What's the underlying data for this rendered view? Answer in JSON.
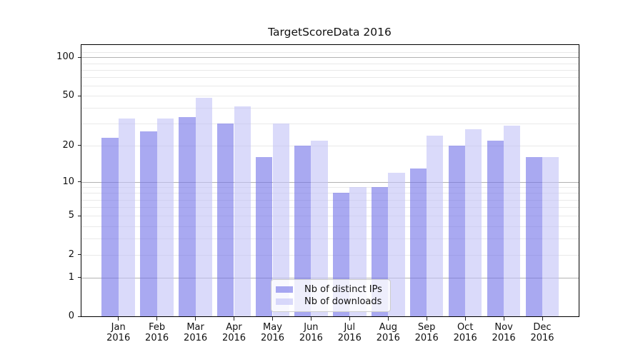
{
  "title": "TargetScoreData 2016",
  "chart_data": {
    "type": "bar",
    "title": "TargetScoreData 2016",
    "categories": [
      "Jan 2016",
      "Feb 2016",
      "Mar 2016",
      "Apr 2016",
      "May 2016",
      "Jun 2016",
      "Jul 2016",
      "Aug 2016",
      "Sep 2016",
      "Oct 2016",
      "Nov 2016",
      "Dec 2016"
    ],
    "months": [
      "Jan",
      "Feb",
      "Mar",
      "Apr",
      "May",
      "Jun",
      "Jul",
      "Aug",
      "Sep",
      "Oct",
      "Nov",
      "Dec"
    ],
    "year": "2016",
    "series": [
      {
        "name": "Nb of distinct IPs",
        "color": "rgba(112,112,232,0.6)",
        "values": [
          23,
          26,
          34,
          30,
          16,
          20,
          8,
          9,
          13,
          20,
          22,
          16
        ]
      },
      {
        "name": "Nb of downloads",
        "color": "rgba(193,193,247,0.6)",
        "values": [
          33,
          33,
          48,
          41,
          30,
          22,
          9,
          12,
          24,
          27,
          29,
          16
        ]
      }
    ],
    "xlabel": "",
    "ylabel": "",
    "yscale": "log1p",
    "ylim": [
      0,
      125
    ],
    "y_tick_labels": [
      "100",
      "50",
      "20",
      "10",
      "5",
      "2",
      "1",
      "0"
    ],
    "y_tick_values": [
      100,
      50,
      20,
      10,
      5,
      2,
      1,
      0
    ],
    "grid": true,
    "grid_major_values": [
      1,
      10,
      100
    ],
    "grid_minor_values": [
      2,
      3,
      4,
      5,
      6,
      7,
      8,
      9,
      20,
      30,
      40,
      50,
      60,
      70,
      80,
      90,
      110
    ],
    "legend_position": "lower center"
  },
  "legend": {
    "items": [
      {
        "label": "Nb of distinct IPs",
        "color": "rgba(112,112,232,0.6)"
      },
      {
        "label": "Nb of downloads",
        "color": "rgba(193,193,247,0.6)"
      }
    ]
  },
  "colors": {
    "grid_major": "#b3b3b3",
    "grid_minor": "#e9e9e9",
    "spine": "#000000",
    "text": "#111111",
    "legend_border": "#cccccc",
    "legend_bg": "rgba(255,255,255,0.8)"
  }
}
